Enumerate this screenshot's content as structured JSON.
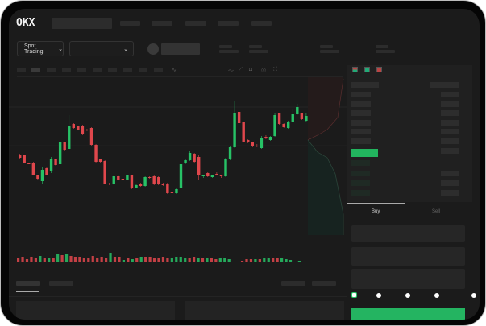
{
  "header": {
    "logo": "OKX"
  },
  "toolbar": {
    "market_selector_label": "Spot Trading"
  },
  "order_form": {
    "tabs": [
      {
        "label": "Buy",
        "active": true
      },
      {
        "label": "Sell",
        "active": false
      }
    ],
    "slider_stops": 5,
    "slider_value_percent": 0
  },
  "colors": {
    "up": "#27c266",
    "down": "#e0474c",
    "background": "#1b1b1b",
    "accent": "#24b461"
  },
  "icons": [
    "chevron-down-icon",
    "indicator-icon",
    "line-icon",
    "ruler-icon",
    "camera-icon",
    "settings-icon",
    "fullscreen-icon",
    "orderbook-both-icon",
    "orderbook-bids-icon",
    "orderbook-asks-icon"
  ],
  "chart": {
    "type": "candlestick",
    "candles": [
      [
        69,
        65,
        70,
        64
      ],
      [
        68,
        59,
        69,
        58
      ],
      [
        58,
        57,
        59,
        57
      ],
      [
        58,
        44,
        60,
        43
      ],
      [
        43,
        39,
        44,
        38
      ],
      [
        36,
        50,
        53,
        33
      ],
      [
        52,
        44,
        53,
        43
      ],
      [
        48,
        64,
        66,
        46
      ],
      [
        63,
        56,
        64,
        55
      ],
      [
        57,
        85,
        93,
        56
      ],
      [
        84,
        75,
        85,
        74
      ],
      [
        76,
        105,
        118,
        75
      ],
      [
        107,
        102,
        108,
        101
      ],
      [
        104,
        100,
        105,
        99
      ],
      [
        104,
        94,
        106,
        93
      ],
      [
        100,
        99,
        101,
        98
      ],
      [
        102,
        81,
        103,
        80
      ],
      [
        81,
        60,
        82,
        59
      ],
      [
        63,
        60,
        64,
        59
      ],
      [
        61,
        33,
        62,
        32
      ],
      [
        33,
        32,
        34,
        31
      ],
      [
        32,
        42,
        43,
        31
      ],
      [
        42,
        38,
        43,
        37
      ],
      [
        39,
        38,
        40,
        37
      ],
      [
        38,
        43,
        44,
        37
      ],
      [
        43,
        28,
        44,
        26
      ],
      [
        28,
        31,
        32,
        27
      ],
      [
        33,
        30,
        34,
        29
      ],
      [
        30,
        41,
        42,
        29
      ],
      [
        41,
        40,
        42,
        39
      ],
      [
        42,
        32,
        43,
        31
      ],
      [
        41,
        32,
        42,
        31
      ],
      [
        33,
        31,
        34,
        30
      ],
      [
        32,
        21,
        34,
        20
      ],
      [
        22,
        21,
        23,
        20
      ],
      [
        21,
        26,
        27,
        20
      ],
      [
        28,
        57,
        60,
        27
      ],
      [
        58,
        62,
        63,
        57
      ],
      [
        62,
        71,
        74,
        61
      ],
      [
        70,
        60,
        71,
        59
      ],
      [
        66,
        44,
        68,
        38
      ],
      [
        42,
        43,
        44,
        40
      ],
      [
        46,
        42,
        47,
        41
      ],
      [
        41,
        43,
        44,
        40
      ],
      [
        45,
        44,
        47,
        43
      ],
      [
        43,
        42,
        44,
        40
      ],
      [
        42,
        63,
        65,
        41
      ],
      [
        63,
        78,
        80,
        62
      ],
      [
        78,
        120,
        135,
        77
      ],
      [
        122,
        108,
        124,
        107
      ],
      [
        109,
        85,
        110,
        84
      ],
      [
        87,
        84,
        88,
        83
      ],
      [
        84,
        79,
        85,
        78
      ],
      [
        80,
        79,
        82,
        78
      ],
      [
        77,
        90,
        92,
        76
      ],
      [
        91,
        89,
        93,
        88
      ],
      [
        87,
        91,
        92,
        86
      ],
      [
        92,
        118,
        120,
        91
      ],
      [
        120,
        107,
        121,
        106
      ],
      [
        107,
        103,
        108,
        102
      ],
      [
        102,
        110,
        111,
        101
      ],
      [
        110,
        119,
        125,
        109
      ],
      [
        119,
        128,
        132,
        118
      ],
      [
        120,
        113,
        121,
        112
      ],
      [
        111,
        117,
        121,
        110
      ]
    ],
    "volumes": [
      6,
      7,
      4,
      7,
      5,
      8,
      6,
      6,
      6,
      11,
      9,
      11,
      8,
      7,
      7,
      5,
      6,
      8,
      6,
      7,
      6,
      12,
      7,
      7,
      3,
      6,
      4,
      6,
      7,
      7,
      7,
      5,
      6,
      7,
      6,
      5,
      7,
      7,
      6,
      5,
      7,
      6,
      5,
      6,
      6,
      4,
      5,
      6,
      4,
      1,
      1,
      2,
      4,
      4,
      4,
      4,
      5,
      6,
      5,
      5,
      6,
      4,
      3,
      1,
      2
    ]
  }
}
